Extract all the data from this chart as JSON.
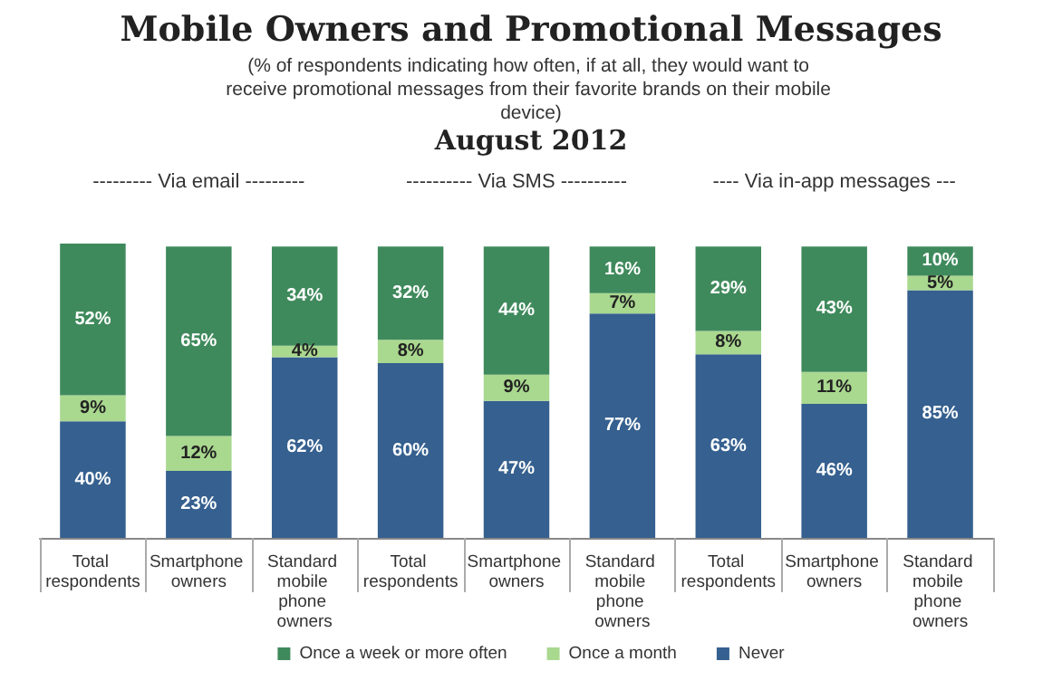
{
  "chart_data": {
    "type": "bar",
    "stacked": true,
    "title": "Mobile Owners and Promotional Messages",
    "subtitle": "(% of respondents indicating how often, if at all, they would want to receive promotional messages from their favorite brands on their mobile device)",
    "annotations": [
      "August 2012",
      "--------- Via email ---------",
      "---------- Via SMS ----------",
      "---- Via in-app messages ---"
    ],
    "categories": [
      "Total respondents",
      "Smartphone owners",
      "Standard mobile phone owners",
      "Total respondents",
      "Smartphone owners",
      "Standard mobile phone owners",
      "Total respondents",
      "Smartphone owners",
      "Standard mobile phone owners"
    ],
    "series": [
      {
        "name": "Never",
        "color": "#35608f",
        "values": [
          40,
          23,
          62,
          60,
          47,
          77,
          63,
          46,
          85
        ],
        "value_labels": [
          "40%",
          "23%",
          "62%",
          "60%",
          "47%",
          "77%",
          "63%",
          "46%",
          "85%"
        ]
      },
      {
        "name": "Once a month",
        "color": "#a9d88f",
        "values": [
          9,
          12,
          4,
          8,
          9,
          7,
          8,
          11,
          5
        ],
        "value_labels": [
          "9%",
          "12%",
          "4%",
          "8%",
          "9%",
          "7%",
          "8%",
          "11%",
          "5%"
        ]
      },
      {
        "name": "Once a week or more often",
        "color": "#3f8a5c",
        "values": [
          52,
          65,
          34,
          32,
          44,
          16,
          29,
          43,
          10
        ],
        "value_labels": [
          "52%",
          "65%",
          "34%",
          "32%",
          "44%",
          "16%",
          "29%",
          "43%",
          "10%"
        ]
      }
    ],
    "legend": "bottom",
    "grid": false
  }
}
